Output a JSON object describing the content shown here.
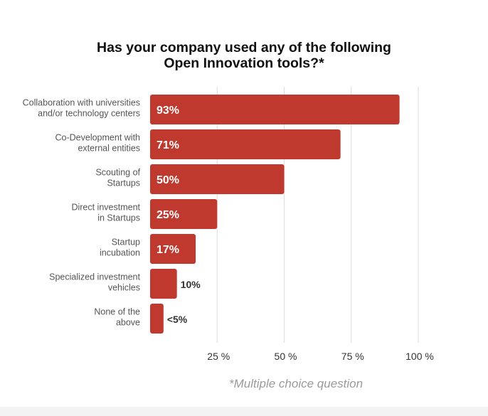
{
  "chart_data": {
    "type": "bar",
    "orientation": "horizontal",
    "title": [
      "Has your company used any of the following",
      "Open Innovation tools?*"
    ],
    "categories": [
      [
        "Collaboration with universities",
        "and/or technology centers"
      ],
      [
        "Co-Development with",
        "external entities"
      ],
      [
        "Scouting of",
        "Startups"
      ],
      [
        "Direct investment",
        "in Startups"
      ],
      [
        "Startup",
        "incubation"
      ],
      [
        "Specialized investment",
        "vehicles"
      ],
      [
        "None of the",
        "above"
      ]
    ],
    "values": [
      93,
      71,
      50,
      25,
      17,
      10,
      5
    ],
    "value_labels": [
      "93%",
      "71%",
      "50%",
      "25%",
      "17%",
      "10%",
      "<5%"
    ],
    "xticks": [
      25,
      50,
      75,
      100
    ],
    "xtick_labels": [
      "25 %",
      "50 %",
      "75 %",
      "100 %"
    ],
    "xlim": [
      0,
      100
    ],
    "grid": "vertical",
    "bar_color": "#c0392f",
    "footnote": "*Multiple choice question"
  }
}
